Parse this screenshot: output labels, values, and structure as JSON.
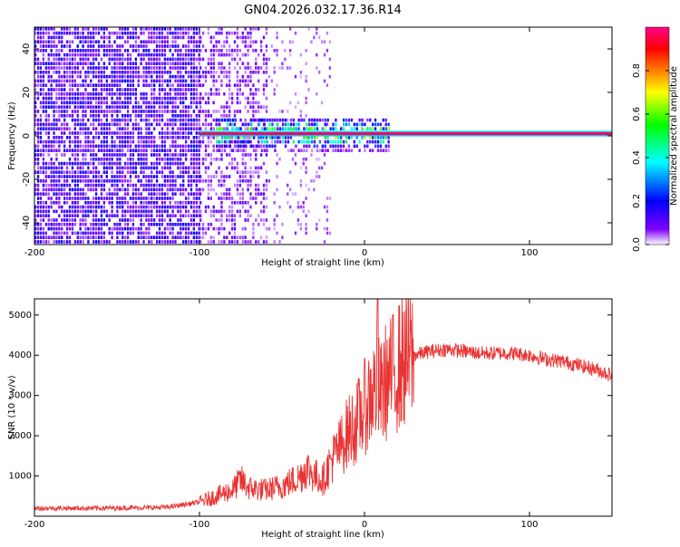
{
  "title": "GN04.2026.032.17.36.R14",
  "chart_data": [
    {
      "type": "heatmap",
      "title": "GN04.2026.032.17.36.R14",
      "xlabel": "Height of straight line (km)",
      "ylabel": "Frequency (Hz)",
      "xlim": [
        -200,
        150
      ],
      "ylim": [
        -50,
        50
      ],
      "xticks": [
        -200,
        -100,
        0,
        100
      ],
      "xtick_labels": [
        "-200",
        "-100",
        "0",
        "100"
      ],
      "yticks": [
        -40,
        -20,
        0,
        20,
        40
      ],
      "ytick_labels": [
        "-40",
        "-20",
        "0",
        "20",
        "40"
      ],
      "signal_line": {
        "frequency_hz": 1,
        "x_start": -100,
        "x_end": 150,
        "amplitude": 1.0
      },
      "noise_regions": [
        {
          "x_range": [
            -200,
            -100
          ],
          "y_range": [
            -50,
            50
          ],
          "amplitude": 0.18,
          "density": 0.8
        },
        {
          "x_range": [
            -100,
            -60
          ],
          "y_range": [
            -50,
            50
          ],
          "amplitude": 0.12,
          "density": 0.5
        },
        {
          "x_range": [
            -60,
            -20
          ],
          "y_range": [
            -50,
            50
          ],
          "amplitude": 0.08,
          "density": 0.15
        },
        {
          "x_range": [
            -90,
            15
          ],
          "y_range": [
            -8,
            8
          ],
          "amplitude": 0.45,
          "density": 0.7
        }
      ],
      "colorbar": {
        "label": "Normalized spectral amplitude",
        "range": [
          0.0,
          1.0
        ],
        "ticks": [
          0.0,
          0.2,
          0.4,
          0.6,
          0.8
        ],
        "tick_labels": [
          "0.0",
          "0.2",
          "0.4",
          "0.6",
          "0.8"
        ],
        "colors": [
          "#ffffff",
          "#7f00ff",
          "#0000ff",
          "#00ffff",
          "#00ff00",
          "#ffff00",
          "#ff7f00",
          "#ff0000",
          "#ff00ff"
        ]
      }
    },
    {
      "type": "line",
      "xlabel": "Height of straight line (km)",
      "ylabel": "SNR (10 * v/v)",
      "xlim": [
        -200,
        150
      ],
      "ylim": [
        0,
        5400
      ],
      "xticks": [
        -200,
        -100,
        0,
        100
      ],
      "xtick_labels": [
        "-200",
        "-100",
        "0",
        "100"
      ],
      "yticks": [
        1000,
        2000,
        3000,
        4000,
        5000
      ],
      "ytick_labels": [
        "1000",
        "2000",
        "3000",
        "4000",
        "5000"
      ],
      "series": [
        {
          "name": "SNR",
          "color": "#e83434",
          "x": [
            -200,
            -180,
            -160,
            -140,
            -120,
            -100,
            -90,
            -80,
            -75,
            -70,
            -60,
            -50,
            -40,
            -35,
            -30,
            -25,
            -20,
            -15,
            -10,
            -5,
            0,
            5,
            8,
            10,
            12,
            15,
            20,
            25,
            30,
            40,
            50,
            60,
            70,
            80,
            90,
            100,
            110,
            120,
            130,
            140,
            150
          ],
          "y": [
            200,
            200,
            200,
            210,
            220,
            350,
            500,
            650,
            900,
            700,
            650,
            750,
            950,
            1200,
            1000,
            900,
            1400,
            1700,
            2100,
            2300,
            2700,
            3100,
            3200,
            3000,
            3300,
            3400,
            3700,
            3900,
            4000,
            4100,
            4150,
            4100,
            4050,
            4050,
            4050,
            4000,
            3900,
            3850,
            3750,
            3650,
            3500
          ]
        }
      ]
    }
  ]
}
